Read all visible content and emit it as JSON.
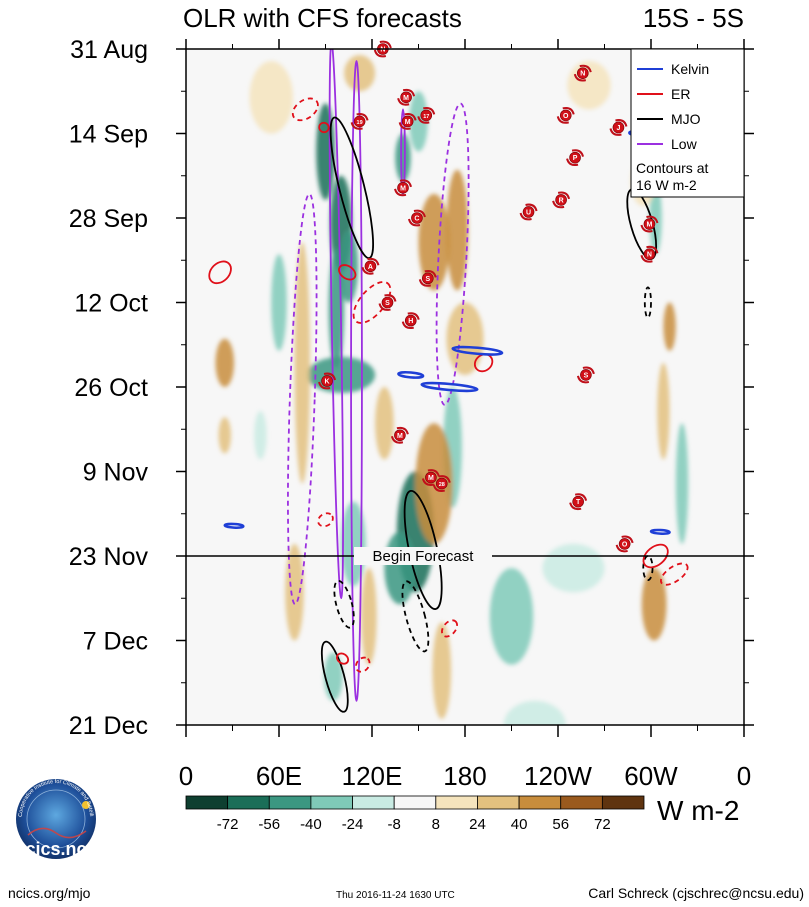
{
  "chart_data": {
    "type": "heatmap",
    "title": "OLR with CFS forecasts",
    "subtitle": "15S - 5S",
    "xlabel": "",
    "ylabel": "",
    "x_ticks": [
      {
        "lon": 0,
        "label": "0"
      },
      {
        "lon": 60,
        "label": "60E"
      },
      {
        "lon": 120,
        "label": "120E"
      },
      {
        "lon": 180,
        "label": "180"
      },
      {
        "lon": 240,
        "label": "120W"
      },
      {
        "lon": 300,
        "label": "60W"
      },
      {
        "lon": 360,
        "label": "0"
      }
    ],
    "xlim": [
      0,
      360
    ],
    "y_ticks": [
      {
        "day": 0,
        "label": "31 Aug"
      },
      {
        "day": 14,
        "label": "14 Sep"
      },
      {
        "day": 28,
        "label": "28 Sep"
      },
      {
        "day": 42,
        "label": "12 Oct"
      },
      {
        "day": 56,
        "label": "26 Oct"
      },
      {
        "day": 70,
        "label": "9 Nov"
      },
      {
        "day": 84,
        "label": "23 Nov"
      },
      {
        "day": 98,
        "label": "7 Dec"
      },
      {
        "day": 112,
        "label": "21 Dec"
      }
    ],
    "ylim_days": [
      0,
      112
    ],
    "forecast_start_day": 84,
    "forecast_label": "Begin Forecast",
    "colorbar": {
      "unit": "W m-2",
      "levels": [
        -72,
        -56,
        -40,
        -24,
        -8,
        8,
        24,
        40,
        56,
        72
      ],
      "colors": [
        "#0e3f30",
        "#1b6e58",
        "#3b9781",
        "#7fcab8",
        "#c9ebe3",
        "#f7f7f7",
        "#f5e4bd",
        "#e3c17f",
        "#c88d3c",
        "#9a5a1e",
        "#5f3410"
      ]
    },
    "legend": {
      "position": "top-right",
      "items": [
        {
          "label": "Kelvin",
          "color": "#1f3fd6"
        },
        {
          "label": "ER",
          "color": "#e0101a"
        },
        {
          "label": "MJO",
          "color": "#000000"
        },
        {
          "label": "Low",
          "color": "#9b30e0"
        }
      ],
      "note": [
        "Contours at",
        "16 W m-2"
      ]
    },
    "anomaly_features": [
      {
        "lon": 90,
        "day": 17,
        "rlon": 6,
        "rday": 8,
        "value": -60
      },
      {
        "lon": 100,
        "day": 29,
        "rlon": 7,
        "rday": 8,
        "value": -70
      },
      {
        "lon": 97,
        "day": 43,
        "rlon": 5,
        "rday": 10,
        "value": -55
      },
      {
        "lon": 100,
        "day": 54,
        "rlon": 22,
        "rday": 3,
        "value": -45
      },
      {
        "lon": 140,
        "day": 18,
        "rlon": 5,
        "rday": 4,
        "value": -45
      },
      {
        "lon": 150,
        "day": 12,
        "rlon": 6,
        "rday": 5,
        "value": -40
      },
      {
        "lon": 148,
        "day": 80,
        "rlon": 12,
        "rday": 10,
        "value": -60
      },
      {
        "lon": 138,
        "day": 86,
        "rlon": 10,
        "rday": 6,
        "value": -50
      },
      {
        "lon": 108,
        "day": 82,
        "rlon": 8,
        "rday": 7,
        "value": -40
      },
      {
        "lon": 105,
        "day": 36,
        "rlon": 6,
        "rday": 6,
        "value": -50
      },
      {
        "lon": 60,
        "day": 42,
        "rlon": 5,
        "rday": 8,
        "value": -28
      },
      {
        "lon": 48,
        "day": 64,
        "rlon": 4,
        "rday": 4,
        "value": -24
      },
      {
        "lon": 95,
        "day": 104,
        "rlon": 6,
        "rday": 4,
        "value": -35
      },
      {
        "lon": 210,
        "day": 94,
        "rlon": 14,
        "rday": 8,
        "value": -30
      },
      {
        "lon": 225,
        "day": 112,
        "rlon": 20,
        "rday": 4,
        "value": -20
      },
      {
        "lon": 172,
        "day": 66,
        "rlon": 6,
        "rday": 10,
        "value": -30
      },
      {
        "lon": 320,
        "day": 72,
        "rlon": 4,
        "rday": 10,
        "value": -30
      },
      {
        "lon": 303,
        "day": 28,
        "rlon": 4,
        "rday": 6,
        "value": -30
      },
      {
        "lon": 250,
        "day": 86,
        "rlon": 20,
        "rday": 4,
        "value": -12
      },
      {
        "lon": 160,
        "day": 32,
        "rlon": 10,
        "rday": 8,
        "value": 45
      },
      {
        "lon": 175,
        "day": 30,
        "rlon": 7,
        "rday": 10,
        "value": 50
      },
      {
        "lon": 180,
        "day": 48,
        "rlon": 12,
        "rday": 6,
        "value": 35
      },
      {
        "lon": 160,
        "day": 72,
        "rlon": 12,
        "rday": 10,
        "value": 40
      },
      {
        "lon": 75,
        "day": 52,
        "rlon": 5,
        "rday": 20,
        "value": 38
      },
      {
        "lon": 70,
        "day": 90,
        "rlon": 6,
        "rday": 8,
        "value": 30
      },
      {
        "lon": 55,
        "day": 8,
        "rlon": 14,
        "rday": 6,
        "value": 20
      },
      {
        "lon": 25,
        "day": 52,
        "rlon": 6,
        "rday": 4,
        "value": 40
      },
      {
        "lon": 25,
        "day": 64,
        "rlon": 4,
        "rday": 3,
        "value": 32
      },
      {
        "lon": 118,
        "day": 94,
        "rlon": 5,
        "rday": 8,
        "value": 30
      },
      {
        "lon": 128,
        "day": 62,
        "rlon": 6,
        "rday": 6,
        "value": 30
      },
      {
        "lon": 312,
        "day": 46,
        "rlon": 4,
        "rday": 4,
        "value": 45
      },
      {
        "lon": 308,
        "day": 60,
        "rlon": 4,
        "rday": 8,
        "value": 30
      },
      {
        "lon": 302,
        "day": 92,
        "rlon": 8,
        "rday": 6,
        "value": 40
      },
      {
        "lon": 295,
        "day": 22,
        "rlon": 8,
        "rday": 4,
        "value": 20
      },
      {
        "lon": 165,
        "day": 103,
        "rlon": 6,
        "rday": 8,
        "value": 28
      },
      {
        "lon": 260,
        "day": 6,
        "rlon": 14,
        "rday": 4,
        "value": 12
      },
      {
        "lon": 112,
        "day": 4,
        "rlon": 10,
        "rday": 3,
        "value": 25
      }
    ],
    "contour_ellipses": [
      {
        "type": "Low",
        "lon": 75,
        "day": 58,
        "rlon": 8,
        "rday": 34,
        "angle": 2,
        "forecast": true
      },
      {
        "type": "Low",
        "lon": 97,
        "day": 45,
        "rlon": 3,
        "rday": 46,
        "angle": -1,
        "forecast": false
      },
      {
        "type": "Low",
        "lon": 110,
        "day": 55,
        "rlon": 3.5,
        "rday": 53,
        "angle": 0,
        "forecast": false
      },
      {
        "type": "Low",
        "lon": 172,
        "day": 34,
        "rlon": 9,
        "rday": 25,
        "angle": 3,
        "forecast": true
      },
      {
        "type": "Low",
        "lon": 140,
        "day": 17,
        "rlon": 1.2,
        "rday": 7,
        "angle": 0,
        "forecast": false
      },
      {
        "type": "MJO",
        "lon": 107,
        "day": 23,
        "rlon": 8,
        "rday": 12,
        "angle": -14,
        "forecast": false
      },
      {
        "type": "MJO",
        "lon": 294,
        "day": 29,
        "rlon": 7,
        "rday": 6,
        "angle": -16,
        "forecast": false
      },
      {
        "type": "MJO",
        "lon": 153,
        "day": 83,
        "rlon": 9,
        "rday": 10,
        "angle": -12,
        "forecast": false
      },
      {
        "type": "MJO",
        "lon": 96,
        "day": 104,
        "rlon": 6,
        "rday": 6,
        "angle": -15,
        "forecast": false
      },
      {
        "type": "MJO",
        "lon": 102,
        "day": 92,
        "rlon": 5,
        "rday": 4,
        "angle": -15,
        "forecast": true
      },
      {
        "type": "MJO",
        "lon": 148,
        "day": 94,
        "rlon": 6,
        "rday": 6,
        "angle": -15,
        "forecast": true
      },
      {
        "type": "MJO",
        "lon": 298,
        "day": 42,
        "rlon": 2,
        "rday": 2.5,
        "angle": 0,
        "forecast": true
      },
      {
        "type": "MJO",
        "lon": 298,
        "day": 86,
        "rlon": 3,
        "rday": 2,
        "angle": 0,
        "forecast": true
      },
      {
        "type": "ER",
        "lon": 22,
        "day": 37,
        "rlon": 8,
        "rday": 1.5,
        "angle": -45,
        "forecast": false
      },
      {
        "type": "ER",
        "lon": 104,
        "day": 37,
        "rlon": 4,
        "rday": 1.5,
        "angle": -55,
        "forecast": false
      },
      {
        "type": "ER",
        "lon": 89,
        "day": 13,
        "rlon": 3,
        "rday": 0.8,
        "angle": -45,
        "forecast": false
      },
      {
        "type": "ER",
        "lon": 101,
        "day": 101,
        "rlon": 3,
        "rday": 1,
        "angle": -55,
        "forecast": false
      },
      {
        "type": "ER",
        "lon": 192,
        "day": 52,
        "rlon": 6,
        "rday": 1.3,
        "angle": -40,
        "forecast": false
      },
      {
        "type": "ER",
        "lon": 303,
        "day": 84,
        "rlon": 9,
        "rday": 1.5,
        "angle": -40,
        "forecast": false
      },
      {
        "type": "ER",
        "lon": 77,
        "day": 10,
        "rlon": 9,
        "rday": 1.5,
        "angle": -35,
        "forecast": true
      },
      {
        "type": "ER",
        "lon": 120,
        "day": 42,
        "rlon": 16,
        "rday": 2,
        "angle": -50,
        "forecast": true
      },
      {
        "type": "ER",
        "lon": 90,
        "day": 78,
        "rlon": 5,
        "rday": 1,
        "angle": -30,
        "forecast": true
      },
      {
        "type": "ER",
        "lon": 114,
        "day": 102,
        "rlon": 5,
        "rday": 1,
        "angle": -50,
        "forecast": true
      },
      {
        "type": "ER",
        "lon": 170,
        "day": 96,
        "rlon": 6,
        "rday": 1,
        "angle": -50,
        "forecast": true
      },
      {
        "type": "ER",
        "lon": 315,
        "day": 87,
        "rlon": 10,
        "rday": 1.2,
        "angle": -35,
        "forecast": true
      },
      {
        "type": "Kelvin",
        "lon": 188,
        "day": 50,
        "rlon": 16,
        "rday": 0.5,
        "angle": 5,
        "forecast": false
      },
      {
        "type": "Kelvin",
        "lon": 170,
        "day": 56,
        "rlon": 18,
        "rday": 0.5,
        "angle": 5,
        "forecast": false
      },
      {
        "type": "Kelvin",
        "lon": 145,
        "day": 54,
        "rlon": 8,
        "rday": 0.4,
        "angle": 5,
        "forecast": false
      },
      {
        "type": "Kelvin",
        "lon": 31,
        "day": 79,
        "rlon": 6,
        "rday": 0.3,
        "angle": 3,
        "forecast": false
      },
      {
        "type": "Kelvin",
        "lon": 290,
        "day": 14,
        "rlon": 4,
        "rday": 0.3,
        "angle": 8,
        "forecast": false
      },
      {
        "type": "Kelvin",
        "lon": 306,
        "day": 80,
        "rlon": 6,
        "rday": 0.3,
        "angle": 3,
        "forecast": false
      }
    ],
    "storms": [
      {
        "label": "N",
        "lon": 127,
        "day": 0
      },
      {
        "label": "M",
        "lon": 142,
        "day": 8
      },
      {
        "label": "19",
        "lon": 112,
        "day": 12
      },
      {
        "label": "M",
        "lon": 143,
        "day": 12
      },
      {
        "label": "17",
        "lon": 155,
        "day": 11
      },
      {
        "label": "M",
        "lon": 140,
        "day": 23
      },
      {
        "label": "C",
        "lon": 149,
        "day": 28
      },
      {
        "label": "U",
        "lon": 221,
        "day": 27
      },
      {
        "label": "R",
        "lon": 242,
        "day": 25
      },
      {
        "label": "N",
        "lon": 256,
        "day": 4
      },
      {
        "label": "O",
        "lon": 245,
        "day": 11
      },
      {
        "label": "P",
        "lon": 251,
        "day": 18
      },
      {
        "label": "J",
        "lon": 279,
        "day": 13
      },
      {
        "label": "M",
        "lon": 299,
        "day": 29
      },
      {
        "label": "N",
        "lon": 299,
        "day": 34
      },
      {
        "label": "A",
        "lon": 119,
        "day": 36
      },
      {
        "label": "S",
        "lon": 156,
        "day": 38
      },
      {
        "label": "S",
        "lon": 130,
        "day": 42
      },
      {
        "label": "H",
        "lon": 145,
        "day": 45
      },
      {
        "label": "K",
        "lon": 91,
        "day": 55
      },
      {
        "label": "S",
        "lon": 258,
        "day": 54
      },
      {
        "label": "M",
        "lon": 138,
        "day": 64
      },
      {
        "label": "M",
        "lon": 158,
        "day": 71
      },
      {
        "label": "28",
        "lon": 165,
        "day": 72
      },
      {
        "label": "T",
        "lon": 253,
        "day": 75
      },
      {
        "label": "O",
        "lon": 283,
        "day": 82
      }
    ]
  },
  "footer": {
    "logo_text": "cics.nc",
    "logo_ring_text": "Cooperative Institute for Climate and Satellites",
    "website": "ncics.org/mjo",
    "timestamp": "Thu 2016-11-24 1630 UTC",
    "credit": "Carl Schreck (cjschrec@ncsu.edu)"
  }
}
